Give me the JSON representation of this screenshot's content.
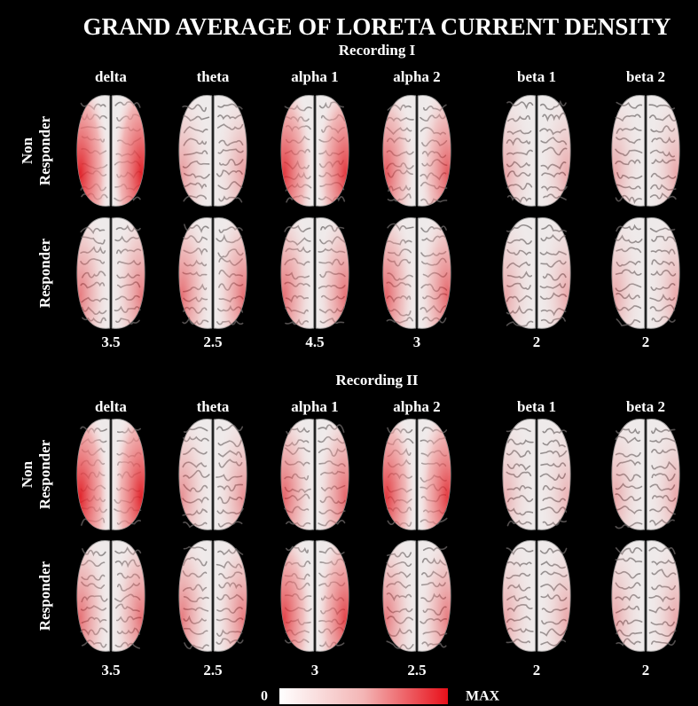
{
  "title": "GRAND AVERAGE OF LORETA CURRENT DENSITY",
  "recordings": [
    {
      "label": "Recording I",
      "bands": [
        "delta",
        "theta",
        "alpha 1",
        "alpha 2",
        "beta 1",
        "beta 2"
      ],
      "row_labels": [
        [
          "Non",
          "Responder"
        ],
        [
          "Responder"
        ]
      ],
      "scales": [
        3.5,
        2.5,
        4.5,
        3,
        2,
        2
      ]
    },
    {
      "label": "Recording II",
      "bands": [
        "delta",
        "theta",
        "alpha 1",
        "alpha 2",
        "beta 1",
        "beta 2"
      ],
      "row_labels": [
        [
          "Non",
          "Responder"
        ],
        [
          "Responder"
        ]
      ],
      "scales": [
        3.5,
        2.5,
        3,
        2.5,
        2,
        2
      ]
    }
  ],
  "colorbar": {
    "min": "0",
    "max": "MAX"
  }
}
